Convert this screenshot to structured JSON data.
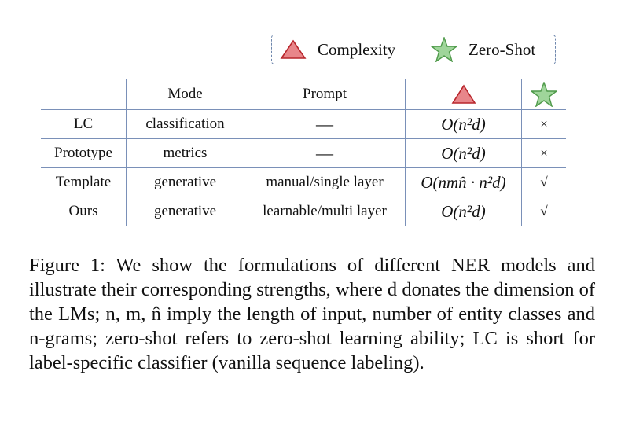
{
  "legend": {
    "items": [
      {
        "icon": "triangle-icon",
        "label": "Complexity",
        "color": "#e8868a"
      },
      {
        "icon": "star-icon",
        "label": "Zero-Shot",
        "color": "#9fd59a"
      }
    ]
  },
  "table": {
    "headers": [
      "",
      "Mode",
      "Prompt",
      "complexity-triangle-icon",
      "zero-shot-star-icon"
    ],
    "rows": [
      {
        "name": "LC",
        "mode": "classification",
        "prompt": "—",
        "complexity": "O(n²d)",
        "zero_shot": "×"
      },
      {
        "name": "Prototype",
        "mode": "metrics",
        "prompt": "—",
        "complexity": "O(n²d)",
        "zero_shot": "×"
      },
      {
        "name": "Template",
        "mode": "generative",
        "prompt": "manual/single layer",
        "complexity": "O(nmn̂ · n²d)",
        "zero_shot": "√"
      },
      {
        "name": "Ours",
        "mode": "generative",
        "prompt": "learnable/multi layer",
        "complexity": "O(n²d)",
        "zero_shot": "√"
      }
    ]
  },
  "caption": {
    "text": "Figure 1: We show the formulations of different NER models and illustrate their corresponding strengths, where d donates the dimension of the LMs; n, m, n̂ imply the length of input, number of entity classes and n-grams; zero-shot refers to zero-shot learning ability; LC is short for label-specific classifier (vanilla sequence labeling)."
  },
  "colors": {
    "rule": "#7a90b8",
    "legend_border": "#6f87ad",
    "triangle_fill": "#e8868a",
    "star_fill": "#9fd59a"
  }
}
